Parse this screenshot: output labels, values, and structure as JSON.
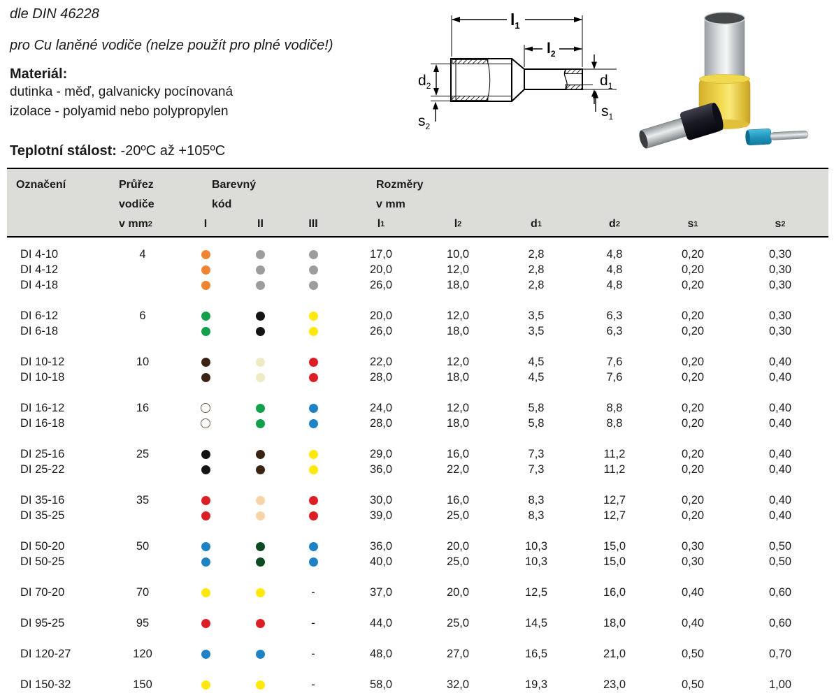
{
  "intro": {
    "standard": "dle DIN 46228",
    "usage": "pro Cu laněné vodiče (nelze použít pro plné vodiče!)",
    "material_heading": "Materiál:",
    "material_lines": [
      "dutinka - měď, galvanicky pocínovaná",
      "izolace - polyamid nebo polypropylen"
    ],
    "temperature_label": "Teplotní stálost:",
    "temperature_value": " -20ºC až +105ºC"
  },
  "diagram": {
    "labels": {
      "l1": {
        "base": "l",
        "sub": "1"
      },
      "l2": {
        "base": "l",
        "sub": "2"
      },
      "d1": {
        "base": "d",
        "sub": "1"
      },
      "d2": {
        "base": "d",
        "sub": "2"
      },
      "s1": {
        "base": "s",
        "sub": "1"
      },
      "s2": {
        "base": "s",
        "sub": "2"
      }
    }
  },
  "photo": {
    "items": [
      "large-yellow-ferrule",
      "black-ferrule",
      "small-blue-ferrule"
    ],
    "colors": {
      "yellow": "#eecf45",
      "black": "#16161e",
      "cyan": "#2da7cb",
      "metal_light": "#e9ebec",
      "metal_dark": "#9aa0a4"
    }
  },
  "table": {
    "header": {
      "designation": "Označení",
      "cross_section": {
        "line1": "Průřez",
        "line2": "vodiče",
        "line3_base": "v mm",
        "line3_sup": "2"
      },
      "color_code": {
        "line1": "Barevný",
        "line2": "kód",
        "cols": [
          "I",
          "II",
          "III"
        ]
      },
      "dimensions": {
        "line1": "Rozměry",
        "line2": "v mm",
        "cols": [
          {
            "base": "l",
            "sub": "1"
          },
          {
            "base": "l",
            "sub": "2"
          },
          {
            "base": "d",
            "sub": "1"
          },
          {
            "base": "d",
            "sub": "2"
          },
          {
            "base": "s",
            "sub": "1"
          },
          {
            "base": "s",
            "sub": "2"
          }
        ]
      }
    },
    "dot_colors": {
      "orange": "#ef8433",
      "gray": "#9d9d9d",
      "green": "#13a04b",
      "black": "#141414",
      "yellow": "#ffe80a",
      "brown": "#3b2314",
      "ivory": "#eeeac4",
      "red": "#dc1f26",
      "white": "#ffffff",
      "blue": "#1e82c5",
      "dark_green": "#0c4a20",
      "beige": "#f7d4a8"
    },
    "groups": [
      {
        "cross_section": "4",
        "rows": [
          {
            "code": "DI 4-10",
            "dots": [
              "orange",
              "gray",
              "gray"
            ],
            "values": [
              "17,0",
              "10,0",
              "2,8",
              "4,8",
              "0,20",
              "0,30"
            ]
          },
          {
            "code": "DI 4-12",
            "dots": [
              "orange",
              "gray",
              "gray"
            ],
            "values": [
              "20,0",
              "12,0",
              "2,8",
              "4,8",
              "0,20",
              "0,30"
            ]
          },
          {
            "code": "DI 4-18",
            "dots": [
              "orange",
              "gray",
              "gray"
            ],
            "values": [
              "26,0",
              "18,0",
              "2,8",
              "4,8",
              "0,20",
              "0,30"
            ]
          }
        ]
      },
      {
        "cross_section": "6",
        "rows": [
          {
            "code": "DI 6-12",
            "dots": [
              "green",
              "black",
              "yellow"
            ],
            "values": [
              "20,0",
              "12,0",
              "3,5",
              "6,3",
              "0,20",
              "0,30"
            ]
          },
          {
            "code": "DI 6-18",
            "dots": [
              "green",
              "black",
              "yellow"
            ],
            "values": [
              "26,0",
              "18,0",
              "3,5",
              "6,3",
              "0,20",
              "0,30"
            ]
          }
        ]
      },
      {
        "cross_section": "10",
        "rows": [
          {
            "code": "DI 10-12",
            "dots": [
              "brown",
              "ivory",
              "red"
            ],
            "values": [
              "22,0",
              "12,0",
              "4,5",
              "7,6",
              "0,20",
              "0,40"
            ]
          },
          {
            "code": "DI 10-18",
            "dots": [
              "brown",
              "ivory",
              "red"
            ],
            "values": [
              "28,0",
              "18,0",
              "4,5",
              "7,6",
              "0,20",
              "0,40"
            ]
          }
        ]
      },
      {
        "cross_section": "16",
        "rows": [
          {
            "code": "DI 16-12",
            "dots": [
              "white",
              "green",
              "blue"
            ],
            "values": [
              "24,0",
              "12,0",
              "5,8",
              "8,8",
              "0,20",
              "0,40"
            ]
          },
          {
            "code": "DI 16-18",
            "dots": [
              "white",
              "green",
              "blue"
            ],
            "values": [
              "28,0",
              "18,0",
              "5,8",
              "8,8",
              "0,20",
              "0,40"
            ]
          }
        ]
      },
      {
        "cross_section": "25",
        "rows": [
          {
            "code": "DI 25-16",
            "dots": [
              "black",
              "brown",
              "yellow"
            ],
            "values": [
              "29,0",
              "16,0",
              "7,3",
              "11,2",
              "0,20",
              "0,40"
            ]
          },
          {
            "code": "DI 25-22",
            "dots": [
              "black",
              "brown",
              "yellow"
            ],
            "values": [
              "36,0",
              "22,0",
              "7,3",
              "11,2",
              "0,20",
              "0,40"
            ]
          }
        ]
      },
      {
        "cross_section": "35",
        "rows": [
          {
            "code": "DI 35-16",
            "dots": [
              "red",
              "beige",
              "red"
            ],
            "values": [
              "30,0",
              "16,0",
              "8,3",
              "12,7",
              "0,20",
              "0,40"
            ]
          },
          {
            "code": "DI 35-25",
            "dots": [
              "red",
              "beige",
              "red"
            ],
            "values": [
              "39,0",
              "25,0",
              "8,3",
              "12,7",
              "0,20",
              "0,40"
            ]
          }
        ]
      },
      {
        "cross_section": "50",
        "rows": [
          {
            "code": "DI 50-20",
            "dots": [
              "blue",
              "dark_green",
              "blue"
            ],
            "values": [
              "36,0",
              "20,0",
              "10,3",
              "15,0",
              "0,30",
              "0,50"
            ]
          },
          {
            "code": "DI 50-25",
            "dots": [
              "blue",
              "dark_green",
              "blue"
            ],
            "values": [
              "40,0",
              "25,0",
              "10,3",
              "15,0",
              "0,30",
              "0,50"
            ]
          }
        ]
      },
      {
        "cross_section": "70",
        "rows": [
          {
            "code": "DI 70-20",
            "dots": [
              "yellow",
              "yellow",
              "-"
            ],
            "values": [
              "37,0",
              "20,0",
              "12,5",
              "16,0",
              "0,40",
              "0,60"
            ]
          }
        ]
      },
      {
        "cross_section": "95",
        "rows": [
          {
            "code": "DI 95-25",
            "dots": [
              "red",
              "red",
              "-"
            ],
            "values": [
              "44,0",
              "25,0",
              "14,5",
              "18,0",
              "0,40",
              "0,60"
            ]
          }
        ]
      },
      {
        "cross_section": "120",
        "rows": [
          {
            "code": "DI 120-27",
            "dots": [
              "blue",
              "blue",
              "-"
            ],
            "values": [
              "48,0",
              "27,0",
              "16,5",
              "21,0",
              "0,50",
              "0,70"
            ]
          }
        ]
      },
      {
        "cross_section": "150",
        "rows": [
          {
            "code": "DI 150-32",
            "dots": [
              "yellow",
              "yellow",
              "-"
            ],
            "values": [
              "58,0",
              "32,0",
              "19,3",
              "23,0",
              "0,50",
              "1,00"
            ]
          }
        ]
      }
    ]
  }
}
